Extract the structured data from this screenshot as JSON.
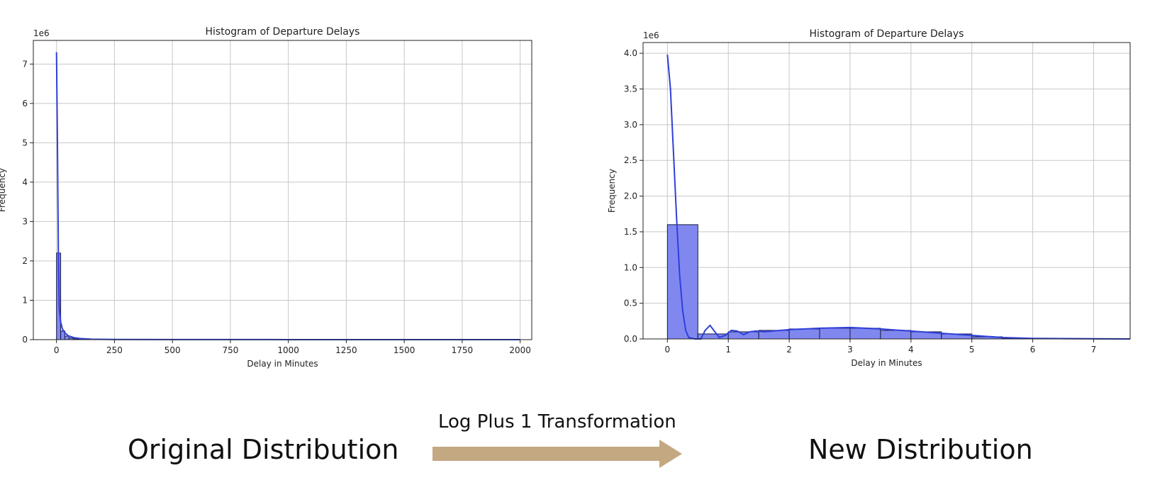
{
  "chart_data": [
    {
      "type": "bar",
      "title": "Histogram of Departure Delays",
      "xlabel": "Delay in Minutes",
      "ylabel": "Frequency",
      "y_multiplier_label": "1e6",
      "xlim": [
        -100,
        2050
      ],
      "ylim": [
        0,
        7.6
      ],
      "x_ticks": [
        0,
        250,
        500,
        750,
        1000,
        1250,
        1500,
        1750,
        2000
      ],
      "y_ticks": [
        0,
        1,
        2,
        3,
        4,
        5,
        6,
        7
      ],
      "grid": true,
      "bins": [
        {
          "x0": 0,
          "x1": 18,
          "count": 2.2
        },
        {
          "x0": 18,
          "x1": 36,
          "count": 0.22
        },
        {
          "x0": 36,
          "x1": 54,
          "count": 0.09
        },
        {
          "x0": 54,
          "x1": 72,
          "count": 0.04
        },
        {
          "x0": 72,
          "x1": 90,
          "count": 0.02
        },
        {
          "x0": 90,
          "x1": 108,
          "count": 0.01
        }
      ],
      "kde": [
        [
          0,
          7.3
        ],
        [
          4,
          5.0
        ],
        [
          8,
          2.2
        ],
        [
          12,
          0.8
        ],
        [
          18,
          0.45
        ],
        [
          25,
          0.28
        ],
        [
          35,
          0.18
        ],
        [
          50,
          0.1
        ],
        [
          75,
          0.05
        ],
        [
          100,
          0.03
        ],
        [
          150,
          0.012
        ],
        [
          250,
          0.005
        ],
        [
          500,
          0.002
        ],
        [
          1000,
          0.001
        ],
        [
          2000,
          0.0
        ]
      ],
      "color": "#2f3fd8"
    },
    {
      "type": "bar",
      "title": "Histogram of Departure Delays",
      "xlabel": "Delay in Minutes",
      "ylabel": "Frequency",
      "y_multiplier_label": "1e6",
      "xlim": [
        -0.4,
        7.6
      ],
      "ylim": [
        0,
        4.15
      ],
      "x_ticks": [
        0,
        1,
        2,
        3,
        4,
        5,
        6,
        7
      ],
      "y_ticks": [
        0.0,
        0.5,
        1.0,
        1.5,
        2.0,
        2.5,
        3.0,
        3.5,
        4.0
      ],
      "grid": true,
      "bins": [
        {
          "x0": 0.0,
          "x1": 0.5,
          "count": 1.6
        },
        {
          "x0": 0.5,
          "x1": 1.0,
          "count": 0.07
        },
        {
          "x0": 1.0,
          "x1": 1.5,
          "count": 0.1
        },
        {
          "x0": 1.5,
          "x1": 2.0,
          "count": 0.12
        },
        {
          "x0": 2.0,
          "x1": 2.5,
          "count": 0.14
        },
        {
          "x0": 2.5,
          "x1": 3.0,
          "count": 0.15
        },
        {
          "x0": 3.0,
          "x1": 3.5,
          "count": 0.15
        },
        {
          "x0": 3.5,
          "x1": 4.0,
          "count": 0.12
        },
        {
          "x0": 4.0,
          "x1": 4.5,
          "count": 0.1
        },
        {
          "x0": 4.5,
          "x1": 5.0,
          "count": 0.07
        },
        {
          "x0": 5.0,
          "x1": 5.5,
          "count": 0.03
        },
        {
          "x0": 5.5,
          "x1": 6.0,
          "count": 0.01
        },
        {
          "x0": 6.0,
          "x1": 6.5,
          "count": 0.005
        },
        {
          "x0": 6.5,
          "x1": 7.0,
          "count": 0.002
        },
        {
          "x0": 7.0,
          "x1": 7.5,
          "count": 0.001
        }
      ],
      "kde": [
        [
          0.0,
          3.98
        ],
        [
          0.05,
          3.5
        ],
        [
          0.1,
          2.6
        ],
        [
          0.15,
          1.7
        ],
        [
          0.2,
          0.9
        ],
        [
          0.25,
          0.4
        ],
        [
          0.3,
          0.12
        ],
        [
          0.35,
          0.02
        ],
        [
          0.45,
          0.0
        ],
        [
          0.55,
          0.0
        ],
        [
          0.62,
          0.12
        ],
        [
          0.7,
          0.19
        ],
        [
          0.78,
          0.1
        ],
        [
          0.85,
          0.02
        ],
        [
          0.95,
          0.05
        ],
        [
          1.05,
          0.12
        ],
        [
          1.15,
          0.11
        ],
        [
          1.25,
          0.06
        ],
        [
          1.35,
          0.1
        ],
        [
          1.45,
          0.11
        ],
        [
          1.6,
          0.1
        ],
        [
          2.0,
          0.13
        ],
        [
          2.5,
          0.15
        ],
        [
          3.0,
          0.16
        ],
        [
          3.5,
          0.14
        ],
        [
          4.0,
          0.11
        ],
        [
          4.5,
          0.08
        ],
        [
          5.0,
          0.05
        ],
        [
          5.5,
          0.02
        ],
        [
          6.0,
          0.008
        ],
        [
          7.0,
          0.002
        ],
        [
          7.6,
          0.0
        ]
      ],
      "color": "#2f3fd8"
    }
  ],
  "captions": {
    "left": "Original Distribution",
    "right": "New Distribution",
    "arrow_label": "Log Plus 1 Transformation",
    "arrow_color": "#c4a882"
  }
}
